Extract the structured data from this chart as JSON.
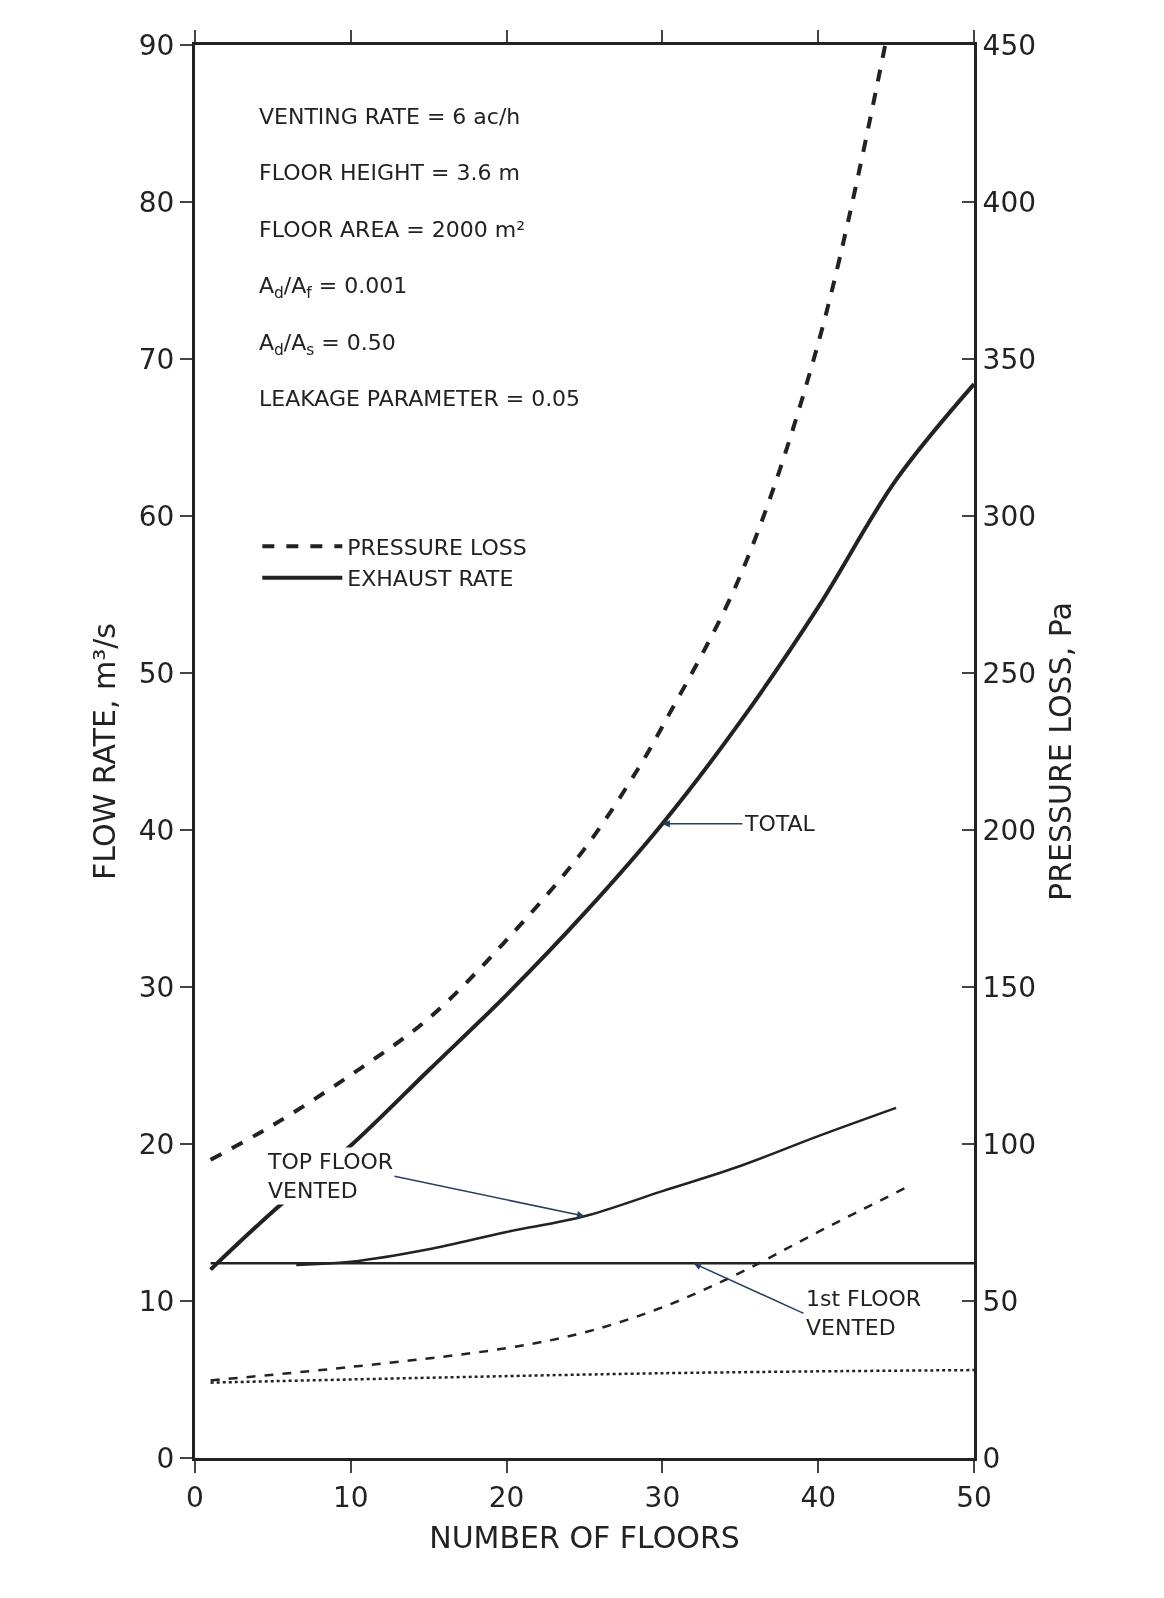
{
  "chart_data": {
    "type": "line",
    "xlabel": "NUMBER OF FLOORS",
    "ylabel": "FLOW RATE, m³/s",
    "y2label": "PRESSURE LOSS, Pa",
    "xlim": [
      0,
      50
    ],
    "xticks": [
      0,
      10,
      20,
      30,
      40,
      50
    ],
    "ylim": [
      0,
      90
    ],
    "yticks": [
      0,
      10,
      20,
      30,
      40,
      50,
      60,
      70,
      80,
      90
    ],
    "y2lim": [
      0,
      450
    ],
    "y2ticks": [
      0,
      50,
      100,
      150,
      200,
      250,
      300,
      350,
      400,
      450
    ],
    "legend": "top left",
    "marker": "none",
    "series": [
      {
        "name": "PRESSURE LOSS",
        "axis": "y2",
        "line_style": "dashed",
        "color": "#222222",
        "x": [
          1,
          5,
          10,
          15,
          20,
          25,
          28.5,
          30,
          35,
          40,
          44.3
        ],
        "values": [
          95,
          106,
          122,
          140,
          165,
          194,
          220,
          233,
          281,
          355,
          450
        ]
      },
      {
        "name": "EXHAUST RATE",
        "axis": "y",
        "line_style": "solid",
        "color": "#222222",
        "x": [
          1,
          5,
          10,
          15,
          20,
          25,
          30,
          35,
          40,
          45,
          50
        ],
        "values": [
          12.0,
          15.7,
          19.9,
          24.7,
          29.5,
          34.7,
          40.4,
          46.9,
          54.2,
          62.3,
          68.4
        ]
      },
      {
        "axis": "y",
        "line_style": "solid",
        "color": "#222222",
        "x": [
          6.5,
          10,
          15,
          20,
          25,
          30,
          35,
          40,
          45
        ],
        "values": [
          12.3,
          12.5,
          13.3,
          14.4,
          15.4,
          17.0,
          18.6,
          20.5,
          22.3
        ]
      },
      {
        "axis": "y",
        "line_style": "solid",
        "color": "#222222",
        "x": [
          1,
          50
        ],
        "values": [
          12.4,
          12.4
        ]
      },
      {
        "axis": "y2",
        "line_style": "dashed",
        "color": "#222222",
        "x": [
          1,
          10,
          20,
          25,
          30,
          35,
          40,
          46
        ],
        "values": [
          24.7,
          29,
          35,
          40,
          48,
          59,
          72,
          87
        ]
      },
      {
        "axis": "y2",
        "line_style": "dotted",
        "color": "#222222",
        "x": [
          1,
          30,
          50
        ],
        "values": [
          24,
          27,
          28
        ]
      }
    ],
    "annotations": [
      "VENTING RATE = 6 ac/h",
      "FLOOR HEIGHT = 3.6 m",
      "FLOOR AREA = 2000 m²",
      "A$_{d}$/A$_{f}$ = 0.001",
      "A$_{d}$/A$_{s}$ = 0.50",
      "LEAKAGE PARAMETER = 0.05",
      {
        "text": "TOTAL",
        "x": 30,
        "y": 40.4
      },
      {
        "text": "TOP FLOOR\nVENTED",
        "x": 25,
        "y": 15.4
      },
      {
        "text": "1st FLOOR\nVENTED",
        "x": 32,
        "y": 12.4
      }
    ]
  }
}
